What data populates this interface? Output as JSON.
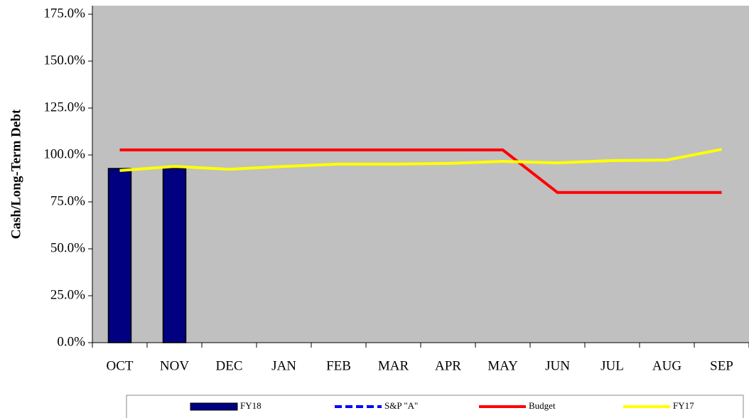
{
  "chart_data": {
    "type": "bar",
    "ylabel": "Cash/Long-Term Debt",
    "categories": [
      "OCT",
      "NOV",
      "DEC",
      "JAN",
      "FEB",
      "MAR",
      "APR",
      "MAY",
      "JUN",
      "JUL",
      "AUG",
      "SEP"
    ],
    "ylim": [
      0,
      175
    ],
    "yticks": [
      {
        "value": 0,
        "label": "0.0%"
      },
      {
        "value": 25,
        "label": "25.0%"
      },
      {
        "value": 50,
        "label": "50.0%"
      },
      {
        "value": 75,
        "label": "75.0%"
      },
      {
        "value": 100,
        "label": "100.0%"
      },
      {
        "value": 125,
        "label": "125.0%"
      },
      {
        "value": 150,
        "label": "150.0%"
      },
      {
        "value": 175,
        "label": "175.0%"
      }
    ],
    "series": [
      {
        "name": "FY18",
        "type": "bar",
        "color": "#000080",
        "values": [
          92.8,
          92.8,
          null,
          null,
          null,
          null,
          null,
          null,
          null,
          null,
          null,
          null
        ]
      },
      {
        "name": "S&P \"A\"",
        "type": "line",
        "dashed": true,
        "color": "#0000ff",
        "values": [
          null,
          null,
          null,
          null,
          null,
          null,
          null,
          null,
          null,
          null,
          null,
          null
        ]
      },
      {
        "name": "Budget",
        "type": "line",
        "color": "#ff0000",
        "values": [
          102.7,
          102.7,
          102.7,
          102.7,
          102.7,
          102.7,
          102.7,
          102.7,
          80,
          80,
          80,
          80
        ]
      },
      {
        "name": "FY17",
        "type": "line",
        "color": "#ffff00",
        "values": [
          91.7,
          93.9,
          92.4,
          93.9,
          95.1,
          95.1,
          95.5,
          96.6,
          95.8,
          97,
          97.3,
          103
        ]
      }
    ]
  }
}
